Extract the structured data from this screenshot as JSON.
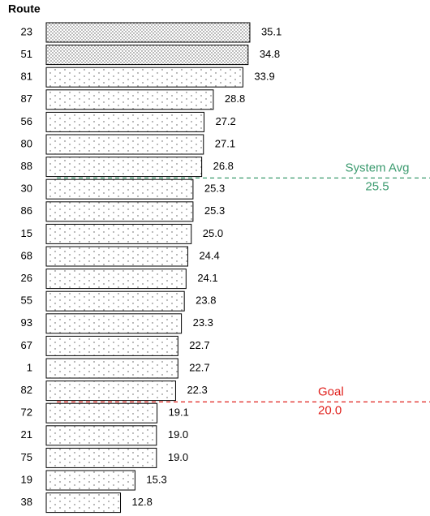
{
  "chart_data": {
    "type": "barh",
    "title": "Route",
    "categories": [
      "23",
      "51",
      "81",
      "87",
      "56",
      "80",
      "88",
      "30",
      "86",
      "15",
      "68",
      "26",
      "55",
      "93",
      "67",
      "1",
      "82",
      "72",
      "21",
      "75",
      "19",
      "38"
    ],
    "values": [
      35.1,
      34.8,
      33.9,
      28.8,
      27.2,
      27.1,
      26.8,
      25.3,
      25.3,
      25.0,
      24.4,
      24.1,
      23.8,
      23.3,
      22.7,
      22.7,
      22.3,
      19.1,
      19.0,
      19.0,
      15.3,
      12.8
    ],
    "value_labels": [
      "35.1",
      "34.8",
      "33.9",
      "28.8",
      "27.2",
      "27.1",
      "26.8",
      "25.3",
      "25.3",
      "25.0",
      "24.4",
      "24.1",
      "23.8",
      "23.3",
      "22.7",
      "22.7",
      "22.3",
      "19.1",
      "19.0",
      "19.0",
      "15.3",
      "12.8"
    ],
    "patterns": [
      "dense",
      "dense",
      "sparse",
      "sparse",
      "sparse",
      "sparse",
      "sparse",
      "sparse",
      "sparse",
      "sparse",
      "sparse",
      "sparse",
      "sparse",
      "sparse",
      "sparse",
      "sparse",
      "sparse",
      "sparse",
      "sparse",
      "sparse",
      "sparse",
      "sparse"
    ],
    "xlim": [
      0,
      40
    ],
    "reference_lines": [
      {
        "label": "System Avg",
        "value": 25.5,
        "value_label": "25.5",
        "color": "#3a9a6e"
      },
      {
        "label": "Goal",
        "value": 20.0,
        "value_label": "20.0",
        "color": "#e0201c"
      }
    ]
  }
}
